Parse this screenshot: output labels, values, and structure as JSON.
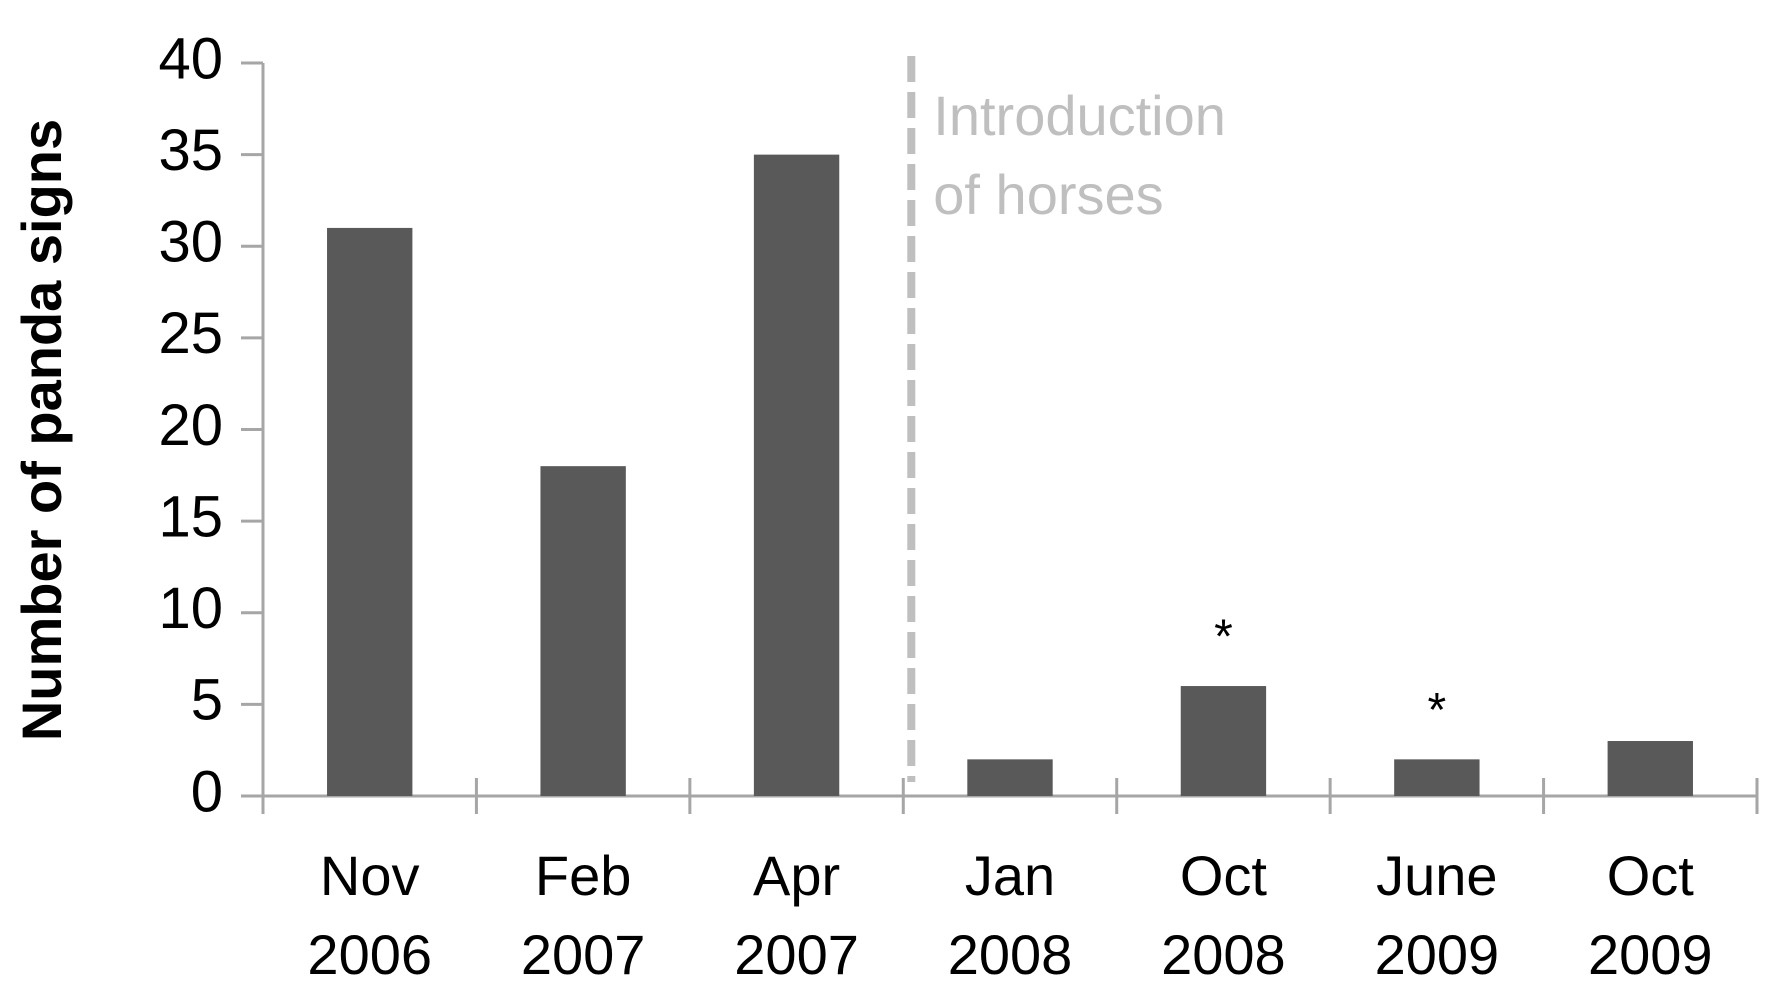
{
  "chart_data": {
    "type": "bar",
    "y_label": "Number of panda signs",
    "categories": [
      [
        "Nov",
        "2006"
      ],
      [
        "Feb",
        "2007"
      ],
      [
        "Apr",
        "2007"
      ],
      [
        "Jan",
        "2008"
      ],
      [
        "Oct",
        "2008"
      ],
      [
        "June",
        "2009"
      ],
      [
        "Oct",
        "2009"
      ]
    ],
    "values": [
      31,
      18,
      35,
      2,
      6,
      2,
      3
    ],
    "value_markers": [
      null,
      null,
      null,
      null,
      "*",
      "*",
      null
    ],
    "color": "#595959",
    "ylim": [
      0,
      40
    ],
    "yticks": [
      0,
      5,
      10,
      15,
      20,
      25,
      30,
      35,
      40
    ],
    "annotation": [
      "Introduction",
      "of horses"
    ],
    "annotation_color": "#bfbfbf",
    "grid": false
  }
}
